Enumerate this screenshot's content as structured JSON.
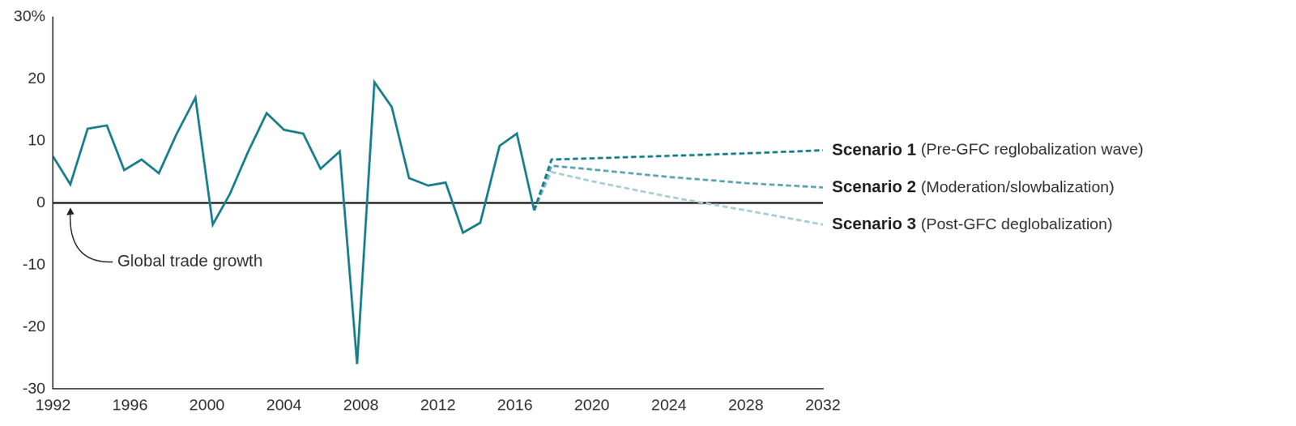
{
  "chart_data": {
    "type": "line",
    "xlim": [
      1992,
      2032
    ],
    "xticks": [
      1992,
      1996,
      2000,
      2004,
      2008,
      2012,
      2016,
      2020,
      2024,
      2028,
      2032
    ],
    "ylim": [
      -30,
      30
    ],
    "yticks": [
      -30,
      -20,
      -10,
      0,
      10,
      20,
      {
        "value": 30,
        "label": "30%"
      }
    ],
    "grid": false,
    "series": [
      {
        "name": "Global trade growth",
        "color": "#1b7f8c",
        "line_style": "solid",
        "x": [
          1992.0,
          1992.9,
          1993.8,
          1994.8,
          1995.7,
          1996.6,
          1997.5,
          1998.4,
          1999.4,
          2000.3,
          2001.2,
          2002.1,
          2003.1,
          2004.0,
          2005.0,
          2005.9,
          2006.9,
          2007.8,
          2008.7,
          2009.6,
          2010.5,
          2011.5,
          2012.4,
          2013.3,
          2014.2,
          2015.2,
          2016.1,
          2017.0
        ],
        "values": [
          7.5,
          3,
          12,
          12.5,
          5.3,
          7,
          4.8,
          11,
          17,
          -3.5,
          1.5,
          8,
          14.5,
          11.8,
          11.2,
          5.5,
          8.3,
          -26,
          19.5,
          15.5,
          4,
          2.8,
          3.3,
          -4.8,
          -3.2,
          9.2,
          11.2,
          -1.2
        ]
      },
      {
        "name": "Scenario 1",
        "label": "(Pre-GFC reglobalization wave)",
        "color": "#1b7f8c",
        "line_style": "dashed",
        "x": [
          2017.0,
          2017.9,
          2020,
          2024,
          2028,
          2032
        ],
        "values": [
          -1.2,
          7,
          7.2,
          7.6,
          8,
          8.5
        ]
      },
      {
        "name": "Scenario 2",
        "label": "(Moderation/slowbalization)",
        "color": "#5fa6af",
        "line_style": "dashed",
        "x": [
          2017.0,
          2017.9,
          2020,
          2024,
          2028,
          2032
        ],
        "values": [
          -1.2,
          6,
          5.4,
          4.2,
          3.2,
          2.5
        ]
      },
      {
        "name": "Scenario 3",
        "label": "(Post-GFC deglobalization)",
        "color": "#a8cfd5",
        "line_style": "dashed",
        "x": [
          2017.0,
          2017.9,
          2020,
          2024,
          2028,
          2032
        ],
        "values": [
          -1.2,
          5,
          3.5,
          1,
          -1.2,
          -3.5
        ]
      }
    ]
  }
}
